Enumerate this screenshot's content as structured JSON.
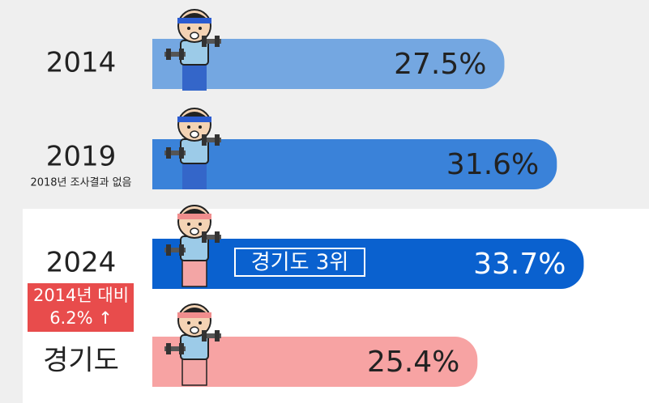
{
  "chart_data": {
    "type": "bar",
    "orientation": "horizontal",
    "categories": [
      "2014",
      "2019",
      "2024",
      "경기도"
    ],
    "values": [
      27.5,
      31.6,
      33.7,
      25.4
    ],
    "value_labels": [
      "27.5%",
      "31.6%",
      "33.7%",
      "25.4%"
    ],
    "colors": [
      "#74a7e1",
      "#3a82d9",
      "#0a61cf",
      "#f7a3a3"
    ],
    "annotations": [
      "2018년 조사결과 없음",
      "경기도 3위",
      "2014년 대비",
      "6.2% ↑"
    ]
  }
}
